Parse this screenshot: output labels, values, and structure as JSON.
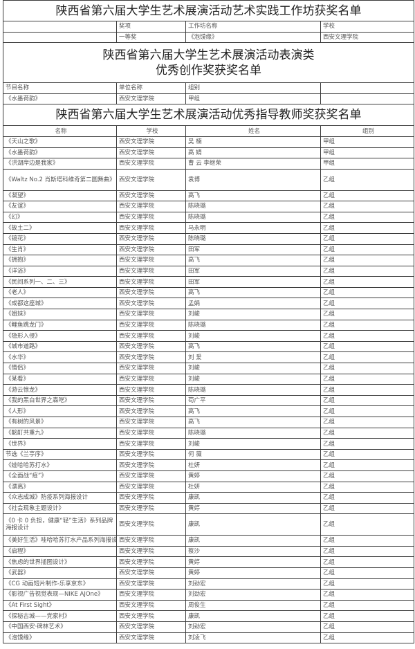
{
  "workshop": {
    "title": "陕西省第六届大学生艺术展演活动艺术实践工作坊获奖名单",
    "headers": [
      "",
      "奖项",
      "工作坊名称",
      "学校"
    ],
    "rows": [
      [
        "",
        "一等奖",
        "《泡馍缘》",
        "西安文理学院"
      ]
    ]
  },
  "performance": {
    "title_line1": "陕西省第六届大学生艺术展演活动表演类",
    "title_line2": "优秀创作奖获奖名单",
    "headers": [
      "节目名称",
      "单位名称",
      "组别",
      ""
    ],
    "rows": [
      [
        "《水墨荷韵》",
        "西安文理学院",
        "甲组",
        ""
      ]
    ]
  },
  "teachers": {
    "title": "陕西省第六届大学生艺术展演活动优秀指导教师奖获奖名单",
    "headers": [
      "名称",
      "学校",
      "姓名",
      "组别"
    ],
    "rows": [
      [
        "《天山之歌》",
        "西安文理学院",
        "吴 楠",
        "甲组"
      ],
      [
        "《水墨荷韵》",
        "西安文理学院",
        "高 婧",
        "甲组"
      ],
      [
        "《洪湖岸边是我家》",
        "西安文理学院",
        "曹 云 李继荣",
        "甲组"
      ],
      [
        "《Waltz No.2 肖斯塔科维奇第二圆舞曲》",
        "西安文理学院",
        "袁博",
        "乙组"
      ],
      [
        "《凝望》",
        "西安文理学院",
        "高飞",
        "乙组"
      ],
      [
        "《友谊》",
        "西安文理学院",
        "陈晓璐",
        "乙组"
      ],
      [
        "《幻》",
        "西安文理学院",
        "陈晓璐",
        "乙组"
      ],
      [
        "《故土二》",
        "西安文理学院",
        "马永明",
        "乙组"
      ],
      [
        "《镜花》",
        "西安文理学院",
        "陈晓璐",
        "乙组"
      ],
      [
        "《生肖》",
        "西安文理学院",
        "田军",
        "乙组"
      ],
      [
        "《拥抱》",
        "西安文理学院",
        "高飞",
        "乙组"
      ],
      [
        "《洋浴》",
        "西安文理学院",
        "田军",
        "乙组"
      ],
      [
        "《民间系列一、二、三》",
        "西安文理学院",
        "田军",
        "乙组"
      ],
      [
        "《老人》",
        "西安文理学院",
        "高飞",
        "乙组"
      ],
      [
        "《成都这座城》",
        "西安文理学院",
        "孟娟",
        "乙组"
      ],
      [
        "《姐妹》",
        "西安文理学院",
        "刘峻",
        "乙组"
      ],
      [
        "《鲤鱼跳龙门》",
        "西安文理学院",
        "陈晓璐",
        "乙组"
      ],
      [
        "《隐形入侵》",
        "西安文理学院",
        "刘峻",
        "乙组"
      ],
      [
        "《城市道路》",
        "西安文理学院",
        "高飞",
        "乙组"
      ],
      [
        "《水华》",
        "西安文理学院",
        "刘 爱",
        "乙组"
      ],
      [
        "《情侣》",
        "西安文理学院",
        "刘峻",
        "乙组"
      ],
      [
        "《某看》",
        "西安文理学院",
        "刘峻",
        "乙组"
      ],
      [
        "《游云惊龙》",
        "西安文理学院",
        "陈晓璐",
        "乙组"
      ],
      [
        "《我的黑白世界之森呓》",
        "西安文理学院",
        "苟广平",
        "乙组"
      ],
      [
        "《人形》",
        "西安文理学院",
        "高飞",
        "乙组"
      ],
      [
        "《有树的风景》",
        "西安文理学院",
        "高飞",
        "乙组"
      ],
      [
        "《酩酊共重九》",
        "西安文理学院",
        "陈晓璐",
        "乙组"
      ],
      [
        "《世界》",
        "西安文理学院",
        "刘峻",
        "乙组"
      ],
      [
        "节选《兰亭序》",
        "西安文理学院",
        "何 薇",
        "乙组"
      ],
      [
        "《娃哈哈苏打水》",
        "西安文理学院",
        "杜妍",
        "乙组"
      ],
      [
        "《全面战“疫”》",
        "西安文理学院",
        "黄婷",
        "乙组"
      ],
      [
        "《漂离》",
        "西安文理学院",
        "杜妍",
        "乙组"
      ],
      [
        "《众志成城》防疫系列海报设计",
        "西安文理学院",
        "康凯",
        "乙组"
      ],
      [
        "《社会现象主题设计》",
        "西安文理学院",
        "黄婷",
        "乙组"
      ],
      [
        "《0 卡 0 负担，健康“轻”生活》系列品牌海报设计",
        "西安文理学院",
        "康凯",
        "乙组"
      ],
      [
        "《美好生活》哇哈哈苏打水产品系列海报设计",
        "西安文理学院",
        "康凯",
        "乙组"
      ],
      [
        "《启程》",
        "西安文理学院",
        "蔡沙",
        "乙组"
      ],
      [
        "《焦虑的世界插图设计》",
        "西安文理学院",
        "黄婷",
        "乙组"
      ],
      [
        "《武器》",
        "西安文理学院",
        "黄婷",
        "乙组"
      ],
      [
        "《CG 动画短片制作-乐享京东》",
        "西安文理学院",
        "刘劲宏",
        "乙组"
      ],
      [
        "《影视广告视觉表现—NIKE AJOne》",
        "西安文理学院",
        "刘劲宏",
        "乙组"
      ],
      [
        "《At First Sight》",
        "西安文理学院",
        "周俊生",
        "乙组"
      ],
      [
        "《探秘古城——党家村》",
        "西安文理学院",
        "康凯",
        "乙组"
      ],
      [
        "《中国西安·碑林艺术》",
        "西安文理学院",
        "刘劲宏",
        "乙组"
      ],
      [
        "《泡馍缘》",
        "西安文理学院",
        "刘凌飞",
        "乙组"
      ]
    ]
  }
}
